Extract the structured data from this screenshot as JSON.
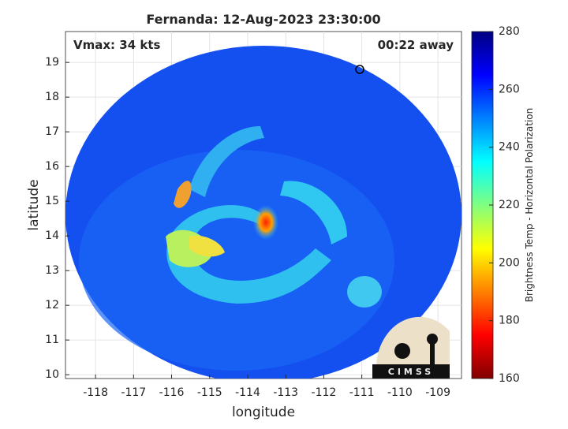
{
  "title": "Fernanda: 12-Aug-2023 23:30:00",
  "annotations": {
    "intensity": "Vmax: 34 kts",
    "time_offset": "00:22 away"
  },
  "xaxis": {
    "label": "longitude",
    "lim": [
      -118.79,
      -108.38
    ],
    "ticks": [
      -118,
      -117,
      -116,
      -115,
      -114,
      -113,
      -112,
      -111,
      -110,
      -109
    ]
  },
  "yaxis": {
    "label": "latitude",
    "lim": [
      9.89,
      19.89
    ],
    "ticks": [
      10,
      11,
      12,
      13,
      14,
      15,
      16,
      17,
      18,
      19
    ]
  },
  "colorbar": {
    "label": "Brightness Temp - Horizontal Polarization",
    "lim": [
      160,
      280
    ],
    "ticks": [
      160,
      180,
      200,
      220,
      240,
      260,
      280
    ],
    "colors": [
      "#800000",
      "#ff0000",
      "#ff8000",
      "#ffff00",
      "#80ff80",
      "#00ffff",
      "#0080ff",
      "#0000ff",
      "#000080"
    ]
  },
  "grid": true,
  "logo": "CIMSS"
}
